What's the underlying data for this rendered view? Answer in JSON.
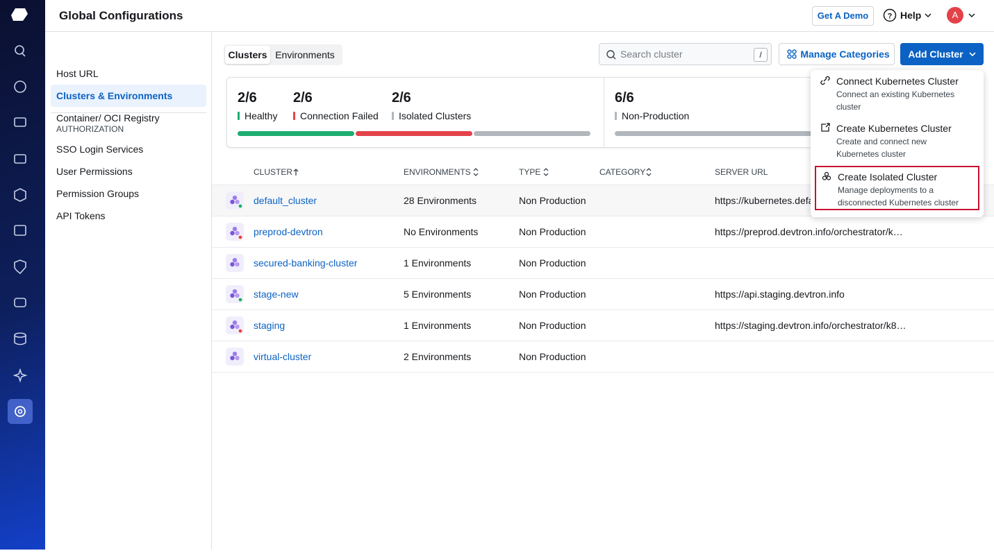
{
  "header": {
    "title": "Global Configurations",
    "demo_button": "Get A Demo",
    "help": "Help",
    "avatar": "A"
  },
  "sidebar": {
    "items": [
      "Host URL",
      "Clusters & Environments",
      "Container/ OCI Registry"
    ],
    "active_index": 1,
    "section_title": "AUTHORIZATION",
    "section_items": [
      "SSO Login Services",
      "User Permissions",
      "Permission Groups",
      "API Tokens"
    ]
  },
  "tabs": {
    "items": [
      "Clusters",
      "Environments"
    ],
    "active_index": 0
  },
  "search": {
    "placeholder": "Search cluster",
    "shortcut": "/"
  },
  "buttons": {
    "manage_categories": "Manage Categories",
    "add_cluster": "Add Cluster"
  },
  "summary": {
    "groups": [
      {
        "stats": [
          {
            "value": "2/6",
            "label": "Healthy",
            "color": "#1dad70"
          },
          {
            "value": "2/6",
            "label": "Connection Failed",
            "color": "#e4424a"
          },
          {
            "value": "2/6",
            "label": "Isolated Clusters",
            "color": "#b1b7bc"
          }
        ]
      },
      {
        "stats": [
          {
            "value": "6/6",
            "label": "Non-Production",
            "color": "#b1b7bc"
          }
        ]
      }
    ]
  },
  "table": {
    "columns": [
      "CLUSTER",
      "ENVIRONMENTS",
      "TYPE",
      "CATEGORY",
      "SERVER URL"
    ],
    "rows": [
      {
        "name": "default_cluster",
        "environments": "28 Environments",
        "type": "Non Production",
        "server_url": "https://kubernetes.defa",
        "status_color": "#1dad70"
      },
      {
        "name": "preprod-devtron",
        "environments": "No Environments",
        "type": "Non Production",
        "server_url": "https://preprod.devtron.info/orchestrator/k…",
        "status_color": "#e4424a"
      },
      {
        "name": "secured-banking-cluster",
        "environments": "1 Environments",
        "type": "Non Production"
      },
      {
        "name": "stage-new",
        "environments": "5 Environments",
        "type": "Non Production",
        "server_url": "https://api.staging.devtron.info",
        "status_color": "#1dad70"
      },
      {
        "name": "staging",
        "environments": "1 Environments",
        "type": "Non Production",
        "server_url": "https://staging.devtron.info/orchestrator/k8…",
        "status_color": "#e4424a"
      },
      {
        "name": "virtual-cluster",
        "environments": "2 Environments",
        "type": "Non Production"
      }
    ]
  },
  "dropdown": {
    "items": [
      {
        "title": "Connect Kubernetes Cluster",
        "description": [
          "Connect an existing Kubernetes",
          "cluster"
        ]
      },
      {
        "title": "Create Kubernetes Cluster",
        "description": [
          "Create and connect new",
          "Kubernetes cluster"
        ]
      },
      {
        "title": "Create Isolated Cluster",
        "description": [
          "Manage deployments to a",
          "disconnected Kubernetes cluster"
        ]
      }
    ],
    "highlighted_index": 2
  }
}
